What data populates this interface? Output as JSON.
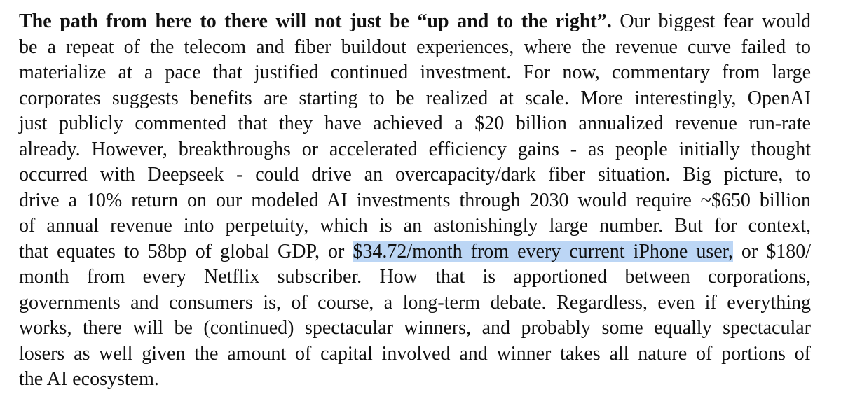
{
  "document": {
    "highlight_color": "#bcd6f5",
    "lines": [
      [
        {
          "text": "The path from here to there will not just be “up and to the right”.",
          "style": "bold"
        },
        {
          "text": " Our biggest fear would",
          "style": "normal"
        }
      ],
      [
        {
          "text": "be a repeat of the telecom and fiber buildout experiences, where the revenue curve failed to",
          "style": "normal"
        }
      ],
      [
        {
          "text": "materialize at a pace that justified continued investment. For now, commentary from large",
          "style": "normal"
        }
      ],
      [
        {
          "text": "corporates suggests benefits are starting to be realized at scale. More interestingly, OpenAI",
          "style": "normal"
        }
      ],
      [
        {
          "text": "just publicly commented that they have achieved a $20 billion annualized revenue run-rate",
          "style": "normal"
        }
      ],
      [
        {
          "text": "already. However, breakthroughs or accelerated efficiency gains - as people initially thought",
          "style": "normal"
        }
      ],
      [
        {
          "text": "occurred with Deepseek - could drive an overcapacity/dark fiber situation. Big picture, to",
          "style": "normal"
        }
      ],
      [
        {
          "text": "drive a 10% return on our modeled AI investments through 2030 would require ~$650 billion",
          "style": "normal"
        }
      ],
      [
        {
          "text": "of annual revenue into perpetuity, which is an astonishingly large number. But for context,",
          "style": "normal"
        }
      ],
      [
        {
          "text": "that equates to 58bp of global GDP, or ",
          "style": "normal"
        },
        {
          "text": "$34.72/month from every current iPhone user,",
          "style": "highlight"
        },
        {
          "text": " or $180/",
          "style": "normal"
        }
      ],
      [
        {
          "text": "month from every Netflix subscriber. How that is apportioned between corporations,",
          "style": "normal"
        }
      ],
      [
        {
          "text": "governments and consumers is, of course, a long-term debate. Regardless, even if everything",
          "style": "normal"
        }
      ],
      [
        {
          "text": "works, there will be (continued) spectacular winners, and probably some equally spectacular",
          "style": "normal"
        }
      ],
      [
        {
          "text": "losers as well given the amount of capital involved and winner takes all nature of portions of",
          "style": "normal"
        }
      ],
      [
        {
          "text": "the AI ecosystem.",
          "style": "normal"
        }
      ]
    ]
  }
}
